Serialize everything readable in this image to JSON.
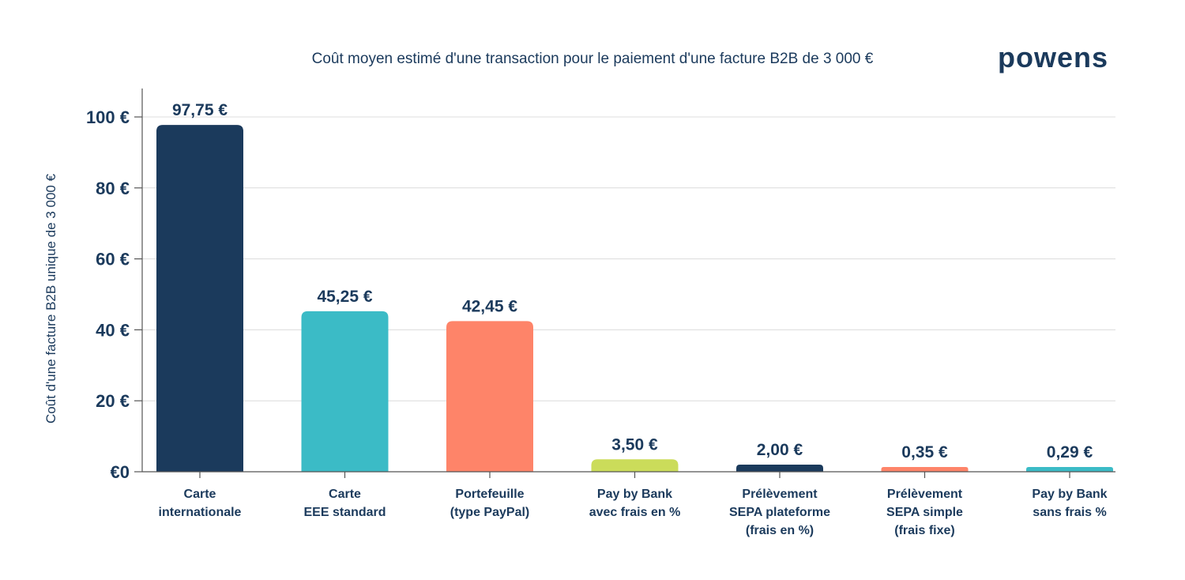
{
  "brand": {
    "logo_text": "powens",
    "text_color": "#1b3a5c"
  },
  "chart_data": {
    "type": "bar",
    "title": "Coût moyen estimé d'une transaction pour le paiement d'une facture B2B de 3 000 €",
    "ylabel": "Coût d'une facture B2B unique de 3 000 €",
    "xlabel": "",
    "ylim": [
      0,
      105
    ],
    "yticks": [
      0,
      20,
      40,
      60,
      80,
      100
    ],
    "ytick_labels": [
      "€0",
      "20 €",
      "40 €",
      "60 €",
      "80 €",
      "100 €"
    ],
    "grid": true,
    "categories": [
      [
        "Carte",
        "internationale"
      ],
      [
        "Carte",
        "EEE standard"
      ],
      [
        "Portefeuille",
        "(type PayPal)"
      ],
      [
        "Pay by Bank",
        "avec frais en %"
      ],
      [
        "Prélèvement",
        "SEPA plateforme",
        "(frais en %)"
      ],
      [
        "Prélèvement",
        "SEPA simple",
        "(frais fixe)"
      ],
      [
        "Pay by Bank",
        "sans frais %"
      ]
    ],
    "values": [
      97.75,
      45.25,
      42.45,
      3.5,
      2.0,
      0.35,
      0.29
    ],
    "value_labels": [
      "97,75 €",
      "45,25 €",
      "42,45 €",
      "3,50 €",
      "2,00 €",
      "0,35 €",
      "0,29 €"
    ],
    "colors": [
      "#1b3a5c",
      "#3bbbc6",
      "#fe8469",
      "#cbdc5a",
      "#1b3a5c",
      "#fe8469",
      "#3bbbc6"
    ]
  }
}
